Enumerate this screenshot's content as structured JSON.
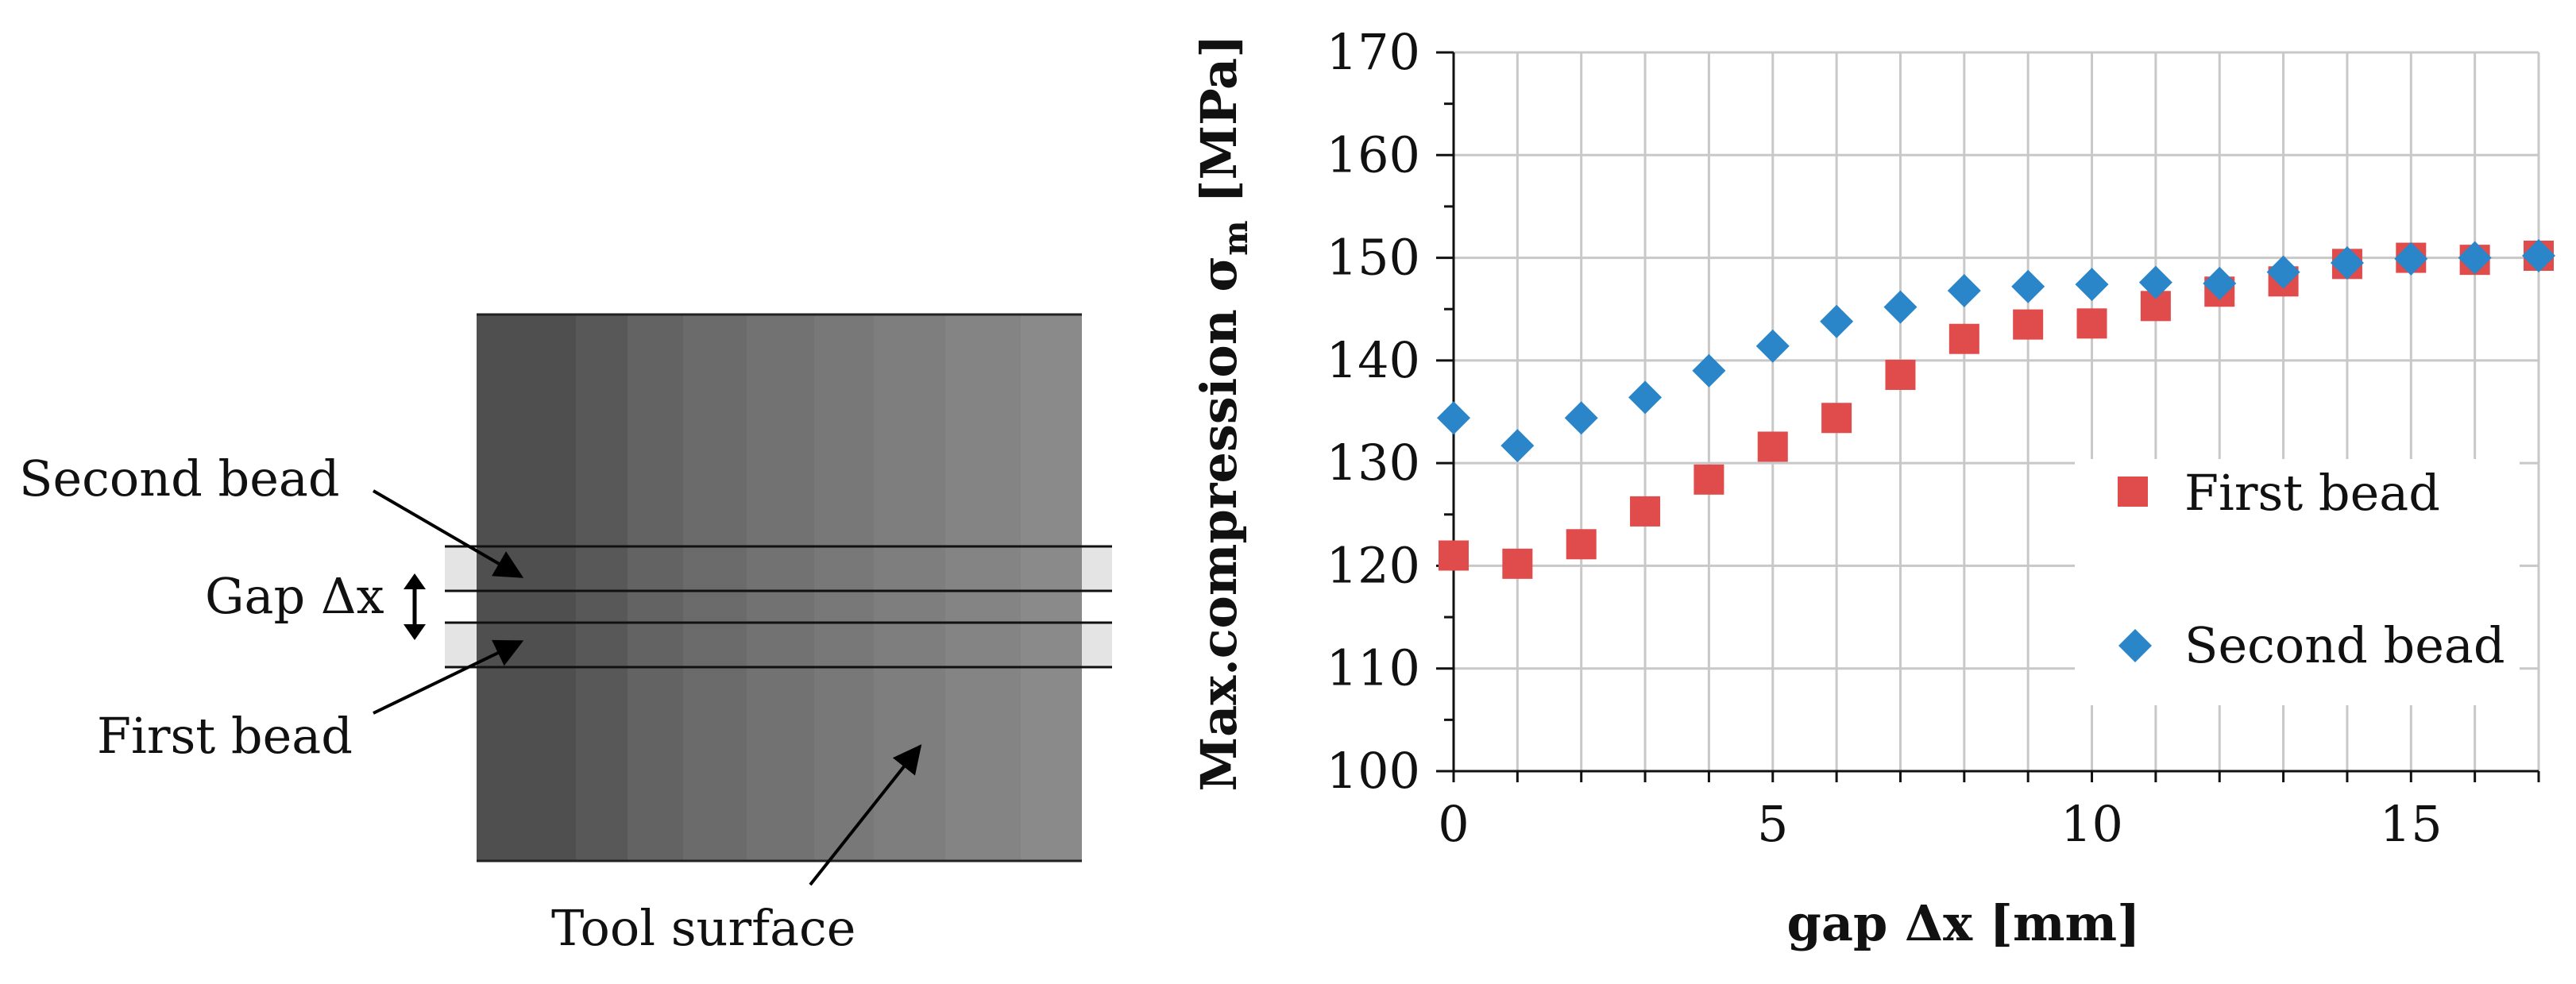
{
  "diagram": {
    "labels": {
      "second_bead": "Second bead",
      "gap": "Gap Δx",
      "first_bead": "First bead",
      "tool_surface": "Tool surface"
    }
  },
  "chart_data": {
    "type": "scatter",
    "title": "",
    "xlabel": "gap Δx [mm]",
    "ylabel_main": "Max.compression σ",
    "ylabel_sub": "m",
    "ylabel_unit": " [MPa]",
    "xlim": [
      0,
      17
    ],
    "ylim": [
      100,
      170
    ],
    "xticks": [
      0,
      5,
      10,
      15
    ],
    "yticks": [
      100,
      110,
      120,
      130,
      140,
      150,
      160,
      170
    ],
    "grid": true,
    "legend_position": "center-right",
    "series": [
      {
        "name": "First bead",
        "marker": "square",
        "color": "#e04b4b",
        "x": [
          0,
          1,
          2,
          3,
          4,
          5,
          6,
          7,
          8,
          9,
          10,
          11,
          12,
          13,
          14,
          15,
          16,
          17
        ],
        "y": [
          121,
          120.2,
          122.1,
          125.3,
          128.4,
          131.6,
          134.4,
          138.6,
          142.1,
          143.5,
          143.6,
          145.3,
          146.7,
          147.7,
          149.4,
          150,
          149.8,
          150.2
        ]
      },
      {
        "name": "Second bead",
        "marker": "diamond",
        "color": "#2a86c8",
        "x": [
          0,
          1,
          2,
          3,
          4,
          5,
          6,
          7,
          8,
          9,
          10,
          11,
          12,
          13,
          14,
          15,
          16,
          17
        ],
        "y": [
          134.4,
          131.7,
          134.4,
          136.4,
          139,
          141.4,
          143.8,
          145.2,
          146.8,
          147.2,
          147.4,
          147.6,
          147.5,
          148.6,
          149.5,
          149.9,
          150,
          150.2
        ]
      }
    ]
  }
}
